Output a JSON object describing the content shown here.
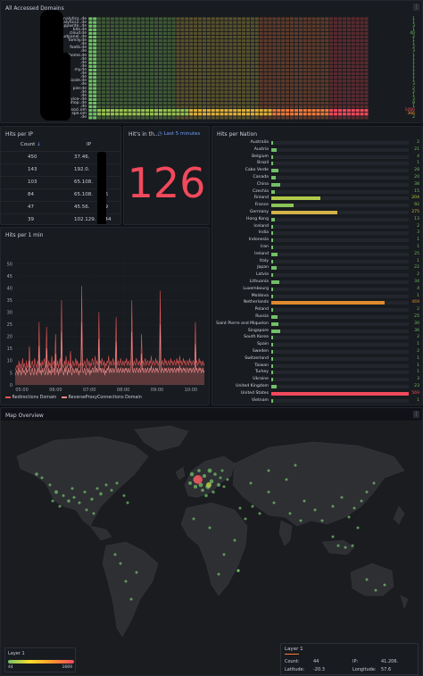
{
  "domains_panel": {
    "title": "All Accessed Domains",
    "rows": [
      {
        "label": "analytics.",
        "value": "1",
        "color": "#73bf69"
      },
      {
        "label": "analytics2.",
        "value": "1",
        "color": "#73bf69"
      },
      {
        "label": "appwrite.",
        "value": "3",
        "color": "#73bf69"
      },
      {
        "label": "bits",
        "value": "1",
        "color": "#73bf69"
      },
      {
        "label": "cloud",
        "value": "40",
        "color": "#73bf69"
      },
      {
        "label": "cloudpanel.",
        "value": "2",
        "color": "#73bf69"
      },
      {
        "label": "family",
        "value": "1",
        "color": "#73bf69"
      },
      {
        "label": "",
        "value": "1",
        "color": "#73bf69"
      },
      {
        "label": "footb",
        "value": "2",
        "color": "#73bf69"
      },
      {
        "label": "",
        "value": "3",
        "color": "#73bf69"
      },
      {
        "label": "home",
        "value": "1",
        "color": "#73bf69"
      },
      {
        "label": "",
        "value": "1",
        "color": "#73bf69"
      },
      {
        "label": "",
        "value": "1",
        "color": "#73bf69"
      },
      {
        "label": "",
        "value": "1",
        "color": "#73bf69"
      },
      {
        "label": "my",
        "value": "1",
        "color": "#73bf69"
      },
      {
        "label": "",
        "value": "1",
        "color": "#73bf69"
      },
      {
        "label": "",
        "value": "1",
        "color": "#73bf69"
      },
      {
        "label": "nicole",
        "value": "1",
        "color": "#73bf69"
      },
      {
        "label": "",
        "value": "3",
        "color": "#73bf69"
      },
      {
        "label": "pier",
        "value": "2",
        "color": "#73bf69"
      },
      {
        "label": "",
        "value": "2",
        "color": "#73bf69"
      },
      {
        "label": "",
        "value": "1",
        "color": "#73bf69"
      },
      {
        "label": "service-",
        "value": "3",
        "color": "#73bf69"
      },
      {
        "label": "shop.",
        "value": "8",
        "color": "#73bf69"
      },
      {
        "label": "",
        "value": "1",
        "color": "#73bf69"
      },
      {
        "label": "soci",
        "value": "1066",
        "color": "#f2495c"
      },
      {
        "label": "spe",
        "value": "366",
        "color": "#ff9830"
      },
      {
        "label": "",
        "value": "2",
        "color": "#73bf69"
      }
    ],
    "suffixes": [
      ".de",
      ".de",
      ".de",
      ".de",
      ".de",
      ".de",
      ".de",
      ".de",
      ".de",
      ".de",
      ".de",
      ".de",
      ".de",
      ".de",
      ".de",
      ".de",
      ".de",
      ".de",
      ".de",
      ".de",
      ".de",
      ".de",
      ".de",
      ".de",
      ".de",
      ".om",
      ".om",
      ".de"
    ]
  },
  "hits_per_ip": {
    "title": "Hits per IP",
    "columns": [
      "Count",
      "IP"
    ],
    "sort_icon": "arrow-down-icon",
    "rows": [
      {
        "count": "450",
        "ip": "37.46.",
        "tail": "3"
      },
      {
        "count": "143",
        "ip": "192.0.",
        "tail": "3"
      },
      {
        "count": "103",
        "ip": "65.108.",
        "tail": "5"
      },
      {
        "count": "84",
        "ip": "65.108.",
        "tail": "46"
      },
      {
        "count": "47",
        "ip": "45.56.",
        "tail": "79"
      },
      {
        "count": "39",
        "ip": "102.129.",
        "tail": "244"
      }
    ]
  },
  "hits_in": {
    "title": "Hit's in th...",
    "time_range": "Last 5 minutes",
    "value": "126",
    "color": "#f2495c"
  },
  "hits_per_min": {
    "title": "Hits per 1 min",
    "legend": [
      "Redirections Domain",
      "ReverseProxyConnections Domain"
    ],
    "legend_colors": [
      "#e05656",
      "#ef8a8a"
    ]
  },
  "chart_data": {
    "type": "area",
    "title": "Hits per 1 min",
    "ylim": [
      0,
      55
    ],
    "yticks": [
      "50",
      "45",
      "40",
      "35",
      "30",
      "25",
      "20",
      "15",
      "10",
      "5",
      "0"
    ],
    "xticks": [
      "05:00",
      "06:00",
      "07:00",
      "08:00",
      "09:00",
      "10:00"
    ],
    "xrange": [
      "04:48",
      "10:24"
    ],
    "series": [
      {
        "name": "Redirections Domain",
        "color": "#e05656",
        "values": [
          6,
          7,
          8,
          8,
          6,
          10,
          7,
          9,
          6,
          8,
          11,
          7,
          9,
          8,
          6,
          10,
          7,
          8,
          9,
          16,
          8,
          7,
          9,
          10,
          8,
          7,
          11,
          9,
          8,
          7,
          10,
          8,
          26,
          8,
          9,
          7,
          10,
          8,
          9,
          11,
          7,
          8,
          24,
          9,
          7,
          10,
          8,
          9,
          7,
          12,
          8,
          9,
          10,
          7,
          21,
          9,
          8,
          10,
          7,
          9,
          11,
          8,
          35,
          9,
          8,
          7,
          10,
          8,
          12,
          9,
          7,
          10,
          8,
          9,
          14,
          8,
          7,
          10,
          9,
          8,
          9,
          11,
          8,
          10,
          9,
          7,
          9,
          8,
          10,
          41,
          9,
          8,
          9,
          10,
          8,
          7,
          11,
          9,
          8,
          10,
          7,
          9,
          8,
          11,
          10,
          8,
          9,
          12,
          8,
          10,
          9,
          8,
          30,
          9,
          10,
          8,
          11,
          9,
          8,
          10,
          7,
          9,
          8,
          10,
          9,
          12,
          8,
          9,
          10,
          8,
          9,
          11,
          8,
          9,
          10,
          28,
          8,
          9,
          10,
          8,
          9,
          11,
          9,
          8,
          10,
          9,
          8,
          10,
          9,
          11,
          8,
          9,
          10,
          8,
          9,
          11,
          35,
          9,
          8,
          10,
          9,
          8,
          11,
          10,
          9,
          8,
          10,
          9,
          8,
          21,
          9,
          10,
          8,
          9,
          11,
          8,
          9,
          10,
          9,
          8,
          10,
          9,
          12,
          8,
          9,
          10,
          9,
          8,
          11,
          9,
          10,
          8,
          9,
          10,
          39,
          8,
          9,
          10,
          9,
          8,
          11,
          9,
          10,
          8,
          9,
          10,
          9,
          8,
          11,
          9,
          10,
          8,
          9,
          10,
          9,
          8,
          11,
          9,
          10,
          8,
          12,
          9,
          10,
          8,
          9,
          11,
          9,
          10,
          8,
          9,
          10,
          9,
          8,
          11,
          9,
          10,
          8,
          9,
          10,
          9,
          8,
          26,
          9,
          10,
          8,
          9,
          11,
          9,
          10,
          8,
          9,
          10,
          8,
          9
        ]
      },
      {
        "name": "ReverseProxyConnections Domain",
        "color": "#ef8a8a",
        "values": [
          4,
          5,
          6,
          5,
          4,
          7,
          5,
          6,
          4,
          5,
          7,
          5,
          6,
          5,
          4,
          7,
          5,
          6,
          6,
          10,
          5,
          4,
          6,
          7,
          5,
          4,
          7,
          6,
          5,
          4,
          7,
          5,
          16,
          5,
          6,
          4,
          7,
          5,
          6,
          7,
          4,
          5,
          15,
          6,
          4,
          7,
          5,
          6,
          4,
          8,
          5,
          6,
          7,
          4,
          13,
          6,
          5,
          7,
          4,
          6,
          7,
          5,
          22,
          6,
          5,
          4,
          7,
          5,
          8,
          6,
          4,
          7,
          5,
          6,
          9,
          5,
          4,
          7,
          6,
          5,
          6,
          7,
          5,
          7,
          6,
          4,
          6,
          5,
          7,
          26,
          6,
          5,
          6,
          7,
          5,
          4,
          7,
          6,
          5,
          7,
          4,
          6,
          5,
          7,
          7,
          5,
          6,
          8,
          5,
          7,
          6,
          5,
          19,
          6,
          7,
          5,
          7,
          6,
          5,
          7,
          4,
          6,
          5,
          7,
          6,
          8,
          5,
          6,
          7,
          5,
          6,
          7,
          5,
          6,
          7,
          18,
          5,
          6,
          7,
          5,
          6,
          7,
          6,
          5,
          7,
          6,
          5,
          7,
          6,
          7,
          5,
          6,
          7,
          5,
          6,
          7,
          22,
          6,
          5,
          7,
          6,
          5,
          7,
          7,
          6,
          5,
          7,
          6,
          5,
          13,
          6,
          7,
          5,
          6,
          7,
          5,
          6,
          7,
          6,
          5,
          7,
          6,
          8,
          5,
          6,
          7,
          6,
          5,
          7,
          6,
          7,
          5,
          6,
          7,
          25,
          5,
          6,
          7,
          6,
          5,
          7,
          6,
          7,
          5,
          6,
          7,
          6,
          5,
          7,
          6,
          7,
          5,
          6,
          7,
          6,
          5,
          7,
          6,
          7,
          5,
          8,
          6,
          7,
          5,
          6,
          7,
          6,
          7,
          5,
          6,
          7,
          6,
          5,
          7,
          6,
          7,
          5,
          6,
          7,
          6,
          5,
          17,
          6,
          7,
          5,
          6,
          7,
          6,
          7,
          5,
          6,
          7,
          5,
          6
        ]
      }
    ]
  },
  "nations_panel": {
    "title": "Hits per Nation",
    "max": 569,
    "rows": [
      {
        "name": "Australia",
        "value": "2",
        "n": 2,
        "color": "#73bf69"
      },
      {
        "name": "Austria",
        "value": "21",
        "n": 21,
        "color": "#73bf69"
      },
      {
        "name": "Belgium",
        "value": "4",
        "n": 4,
        "color": "#73bf69"
      },
      {
        "name": "Brazil",
        "value": "1",
        "n": 1,
        "color": "#73bf69"
      },
      {
        "name": "Cabo Verde",
        "value": "28",
        "n": 28,
        "color": "#73bf69"
      },
      {
        "name": "Canada",
        "value": "20",
        "n": 20,
        "color": "#73bf69"
      },
      {
        "name": "China",
        "value": "38",
        "n": 38,
        "color": "#73bf69"
      },
      {
        "name": "Czechia",
        "value": "15",
        "n": 15,
        "color": "#73bf69"
      },
      {
        "name": "Finland",
        "value": "204",
        "n": 204,
        "color": "#b3c94a"
      },
      {
        "name": "France",
        "value": "92",
        "n": 92,
        "color": "#8cc45a"
      },
      {
        "name": "Germany",
        "value": "275",
        "n": 275,
        "color": "#d2b24a"
      },
      {
        "name": "Hong Kong",
        "value": "13",
        "n": 13,
        "color": "#73bf69"
      },
      {
        "name": "Iceland",
        "value": "2",
        "n": 2,
        "color": "#73bf69"
      },
      {
        "name": "India",
        "value": "3",
        "n": 3,
        "color": "#73bf69"
      },
      {
        "name": "Indonesia",
        "value": "1",
        "n": 1,
        "color": "#73bf69"
      },
      {
        "name": "Iran",
        "value": "1",
        "n": 1,
        "color": "#73bf69"
      },
      {
        "name": "Ireland",
        "value": "25",
        "n": 25,
        "color": "#73bf69"
      },
      {
        "name": "Italy",
        "value": "1",
        "n": 1,
        "color": "#73bf69"
      },
      {
        "name": "Japan",
        "value": "22",
        "n": 22,
        "color": "#73bf69"
      },
      {
        "name": "Latvia",
        "value": "2",
        "n": 2,
        "color": "#73bf69"
      },
      {
        "name": "Lithuania",
        "value": "34",
        "n": 34,
        "color": "#73bf69"
      },
      {
        "name": "Luxembourg",
        "value": "4",
        "n": 4,
        "color": "#73bf69"
      },
      {
        "name": "Moldova",
        "value": "1",
        "n": 1,
        "color": "#73bf69"
      },
      {
        "name": "Netherlands",
        "value": "469",
        "n": 469,
        "color": "#e0892e"
      },
      {
        "name": "Poland",
        "value": "2",
        "n": 2,
        "color": "#73bf69"
      },
      {
        "name": "Russia",
        "value": "25",
        "n": 25,
        "color": "#73bf69"
      },
      {
        "name": "Saint Pierre and Miquelon",
        "value": "30",
        "n": 30,
        "color": "#73bf69"
      },
      {
        "name": "Singapore",
        "value": "36",
        "n": 36,
        "color": "#73bf69"
      },
      {
        "name": "South Korea",
        "value": "2",
        "n": 2,
        "color": "#73bf69"
      },
      {
        "name": "Spain",
        "value": "1",
        "n": 1,
        "color": "#73bf69"
      },
      {
        "name": "Sweden",
        "value": "2",
        "n": 2,
        "color": "#73bf69"
      },
      {
        "name": "Switzerland",
        "value": "1",
        "n": 1,
        "color": "#73bf69"
      },
      {
        "name": "Taiwan",
        "value": "1",
        "n": 1,
        "color": "#73bf69"
      },
      {
        "name": "Turkey",
        "value": "1",
        "n": 1,
        "color": "#73bf69"
      },
      {
        "name": "Ukraine",
        "value": "3",
        "n": 3,
        "color": "#73bf69"
      },
      {
        "name": "United Kingdom",
        "value": "23",
        "n": 23,
        "color": "#73bf69"
      },
      {
        "name": "United States",
        "value": "569",
        "n": 569,
        "color": "#f2495c"
      },
      {
        "name": "Vietnam",
        "value": "1",
        "n": 1,
        "color": "#73bf69"
      }
    ]
  },
  "map_panel": {
    "title": "Map Overview",
    "layer_legend": "Layer 1",
    "scale_min": "44",
    "scale_max": "1669",
    "tooltip": {
      "title": "Layer 1",
      "fields": [
        {
          "key": "Count:",
          "value": "44"
        },
        {
          "key": "IP:",
          "value": "41.206."
        },
        {
          "key": "Latitude:",
          "value": "-20.3"
        },
        {
          "key": "Longitude:",
          "value": "57.6"
        }
      ]
    }
  }
}
